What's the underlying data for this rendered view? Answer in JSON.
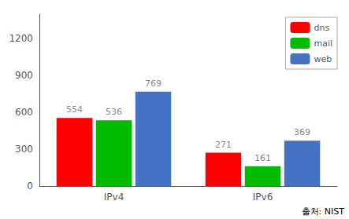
{
  "chart_data": {
    "type": "bar",
    "categories": [
      "IPv4",
      "IPv6"
    ],
    "series": [
      {
        "name": "dns",
        "color": "#ff0000",
        "values": [
          554,
          271
        ]
      },
      {
        "name": "mail",
        "color": "#00bb00",
        "values": [
          536,
          161
        ]
      },
      {
        "name": "web",
        "color": "#4472c4",
        "values": [
          769,
          369
        ]
      }
    ],
    "ylim": [
      0,
      1400
    ],
    "yticks": [
      0,
      300,
      600,
      900,
      1200
    ],
    "grid": false,
    "legend": "upper right",
    "data_labels": true,
    "annotations": [
      "출처: NIST"
    ]
  }
}
